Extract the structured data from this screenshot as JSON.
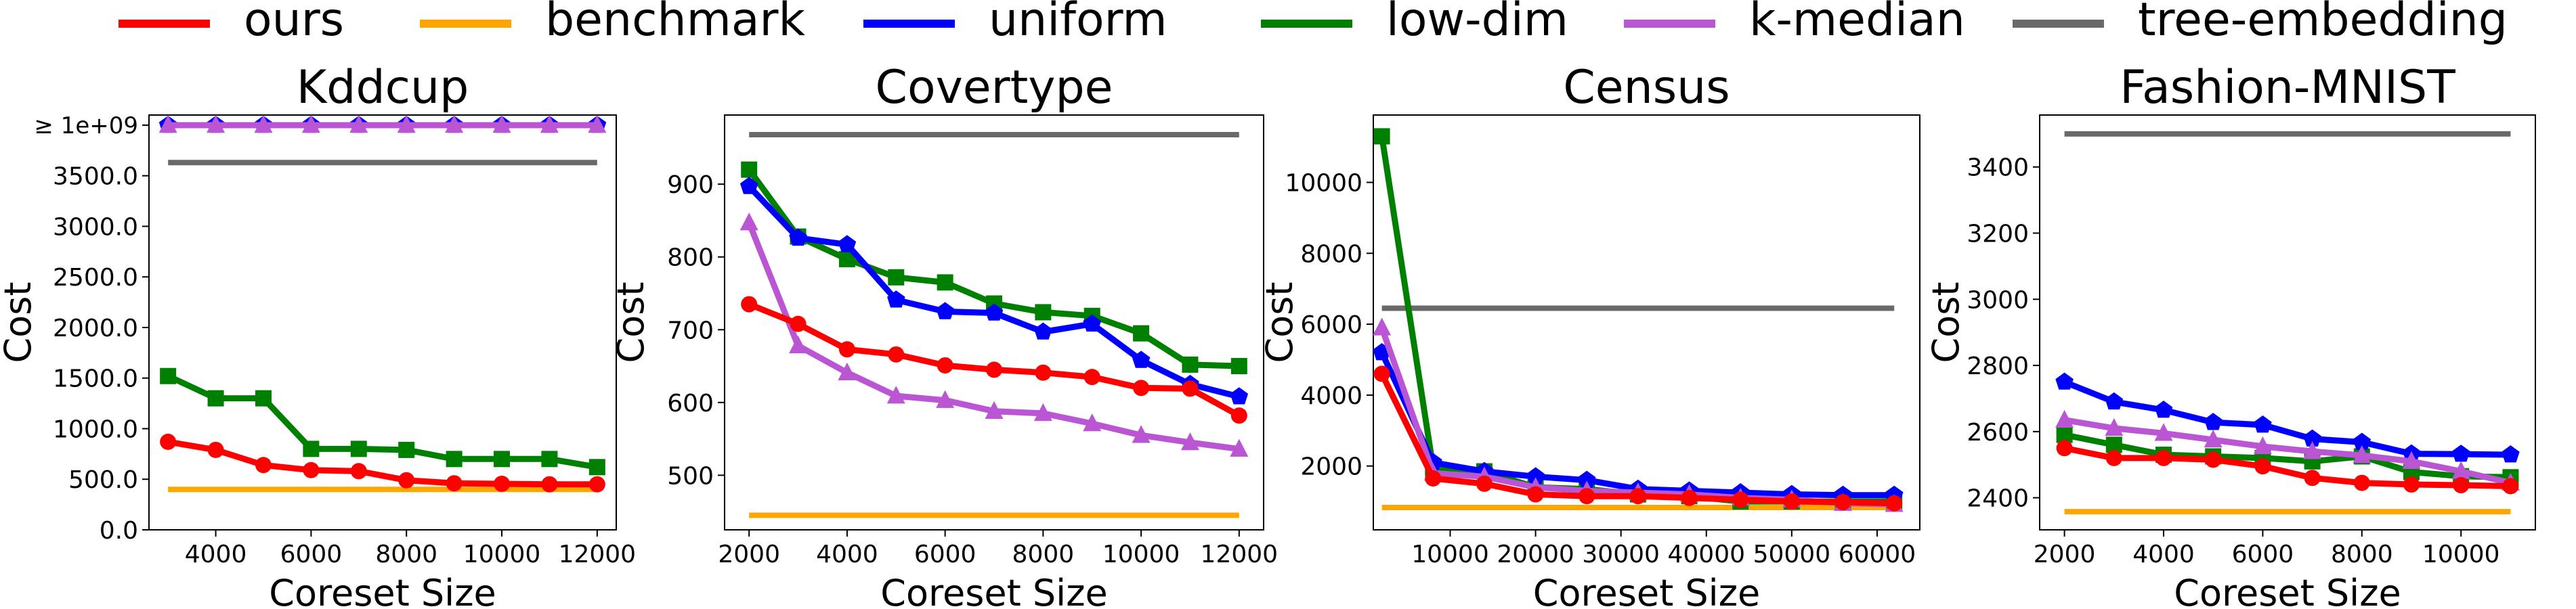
{
  "legend": {
    "entries": [
      {
        "name": "ours",
        "color": "#ff0000"
      },
      {
        "name": "benchmark",
        "color": "#ffa500"
      },
      {
        "name": "uniform",
        "color": "#0000ff"
      },
      {
        "name": "low-dim",
        "color": "#008000"
      },
      {
        "name": "k-median",
        "color": "#ba55d3"
      },
      {
        "name": "tree-embedding",
        "color": "#696969"
      }
    ]
  },
  "chart_data": [
    {
      "type": "line",
      "title": "Kddcup",
      "xlabel": "Coreset Size",
      "ylabel": "Cost",
      "xlim": [
        2600,
        12400
      ],
      "ylim": [
        0,
        4100
      ],
      "xticks": [
        4000,
        6000,
        8000,
        10000,
        12000
      ],
      "yticks": [
        0,
        500,
        1000,
        1500,
        2000,
        2500,
        3000,
        3500
      ],
      "ytick_labels": [
        "0.0",
        "500.0",
        "1000.0",
        "1500.0",
        "2000.0",
        "2500.0",
        "3000.0",
        "3500.0"
      ],
      "top_tick": {
        "value": 4000,
        "label": "≥ 1e+09"
      },
      "grid": false,
      "x": [
        3000,
        4000,
        5000,
        6000,
        7000,
        8000,
        9000,
        10000,
        11000,
        12000
      ],
      "series": [
        {
          "name": "ours",
          "values": [
            870,
            790,
            640,
            590,
            580,
            490,
            460,
            455,
            450,
            450
          ]
        },
        {
          "name": "benchmark",
          "values": [
            400,
            400,
            400,
            400,
            400,
            400,
            400,
            400,
            400,
            400
          ]
        },
        {
          "name": "uniform",
          "values": [
            4000,
            4000,
            4000,
            4000,
            4000,
            4000,
            4000,
            4000,
            4000,
            4000
          ]
        },
        {
          "name": "low-dim",
          "values": [
            1520,
            1300,
            1300,
            800,
            800,
            790,
            700,
            700,
            700,
            620
          ]
        },
        {
          "name": "k-median",
          "values": [
            4000,
            4000,
            4000,
            4000,
            4000,
            4000,
            4000,
            4000,
            4000,
            4000
          ]
        },
        {
          "name": "tree-embedding",
          "values": [
            3630,
            3630,
            3630,
            3630,
            3630,
            3630,
            3630,
            3630,
            3630,
            3630
          ]
        }
      ]
    },
    {
      "type": "line",
      "title": "Covertype",
      "xlabel": "Coreset Size",
      "ylabel": "Cost",
      "xlim": [
        1500,
        12500
      ],
      "ylim": [
        425,
        995
      ],
      "xticks": [
        2000,
        4000,
        6000,
        8000,
        10000,
        12000
      ],
      "yticks": [
        500,
        600,
        700,
        800,
        900
      ],
      "grid": false,
      "x": [
        2000,
        3000,
        4000,
        5000,
        6000,
        7000,
        8000,
        9000,
        10000,
        11000,
        12000
      ],
      "series": [
        {
          "name": "ours",
          "values": [
            735,
            708,
            673,
            666,
            651,
            645,
            641,
            635,
            620,
            619,
            582
          ]
        },
        {
          "name": "benchmark",
          "values": [
            445,
            445,
            445,
            445,
            445,
            445,
            445,
            445,
            445,
            445,
            445
          ]
        },
        {
          "name": "uniform",
          "values": [
            897,
            826,
            817,
            741,
            725,
            723,
            697,
            708,
            658,
            625,
            608
          ]
        },
        {
          "name": "low-dim",
          "values": [
            920,
            828,
            797,
            772,
            765,
            736,
            724,
            719,
            695,
            652,
            650
          ]
        },
        {
          "name": "k-median",
          "values": [
            847,
            678,
            641,
            609,
            603,
            588,
            585,
            571,
            555,
            545,
            536
          ]
        },
        {
          "name": "tree-embedding",
          "values": [
            968,
            968,
            968,
            968,
            968,
            968,
            968,
            968,
            968,
            968,
            968
          ]
        }
      ]
    },
    {
      "type": "line",
      "title": "Census",
      "xlabel": "Coreset Size",
      "ylabel": "Cost",
      "xlim": [
        1000,
        65000
      ],
      "ylim": [
        200,
        11900
      ],
      "xticks": [
        10000,
        20000,
        30000,
        40000,
        50000,
        60000
      ],
      "yticks": [
        2000,
        4000,
        6000,
        8000,
        10000
      ],
      "grid": false,
      "x": [
        2000,
        8000,
        14000,
        20000,
        26000,
        32000,
        38000,
        44000,
        50000,
        56000,
        62000
      ],
      "series": [
        {
          "name": "ours",
          "values": [
            4600,
            1650,
            1500,
            1200,
            1150,
            1150,
            1100,
            1050,
            1000,
            980,
            950
          ]
        },
        {
          "name": "benchmark",
          "values": [
            830,
            830,
            830,
            830,
            830,
            830,
            830,
            830,
            830,
            830,
            830
          ]
        },
        {
          "name": "uniform",
          "values": [
            5200,
            2100,
            1850,
            1700,
            1600,
            1350,
            1300,
            1250,
            1200,
            1180,
            1180
          ]
        },
        {
          "name": "low-dim",
          "values": [
            11300,
            1950,
            1850,
            1400,
            1350,
            1200,
            1150,
            1000,
            1000,
            1000,
            1000
          ]
        },
        {
          "name": "k-median",
          "values": [
            5900,
            1800,
            1700,
            1400,
            1300,
            1250,
            1200,
            1100,
            1050,
            950,
            920
          ]
        },
        {
          "name": "tree-embedding",
          "values": [
            6450,
            6450,
            6450,
            6450,
            6450,
            6450,
            6450,
            6450,
            6450,
            6450,
            6450
          ]
        }
      ]
    },
    {
      "type": "line",
      "title": "Fashion-MNIST",
      "xlabel": "Coreset Size",
      "ylabel": "Cost",
      "xlim": [
        1500,
        11500
      ],
      "ylim": [
        2303,
        3557
      ],
      "xticks": [
        2000,
        4000,
        6000,
        8000,
        10000
      ],
      "yticks": [
        2400,
        2600,
        2800,
        3000,
        3200,
        3400
      ],
      "grid": false,
      "x": [
        2000,
        3000,
        4000,
        5000,
        6000,
        7000,
        8000,
        9000,
        10000,
        11000
      ],
      "series": [
        {
          "name": "ours",
          "values": [
            2550,
            2520,
            2520,
            2515,
            2495,
            2460,
            2445,
            2440,
            2438,
            2435
          ]
        },
        {
          "name": "benchmark",
          "values": [
            2358,
            2358,
            2358,
            2358,
            2358,
            2358,
            2358,
            2358,
            2358,
            2358
          ]
        },
        {
          "name": "uniform",
          "values": [
            2750,
            2690,
            2665,
            2628,
            2620,
            2578,
            2568,
            2533,
            2532,
            2530
          ]
        },
        {
          "name": "low-dim",
          "values": [
            2590,
            2560,
            2530,
            2525,
            2520,
            2510,
            2525,
            2478,
            2465,
            2462
          ]
        },
        {
          "name": "k-median",
          "values": [
            2635,
            2610,
            2595,
            2575,
            2555,
            2540,
            2528,
            2510,
            2480,
            2445
          ]
        },
        {
          "name": "tree-embedding",
          "values": [
            3500,
            3500,
            3500,
            3500,
            3500,
            3500,
            3500,
            3500,
            3500,
            3500
          ]
        }
      ]
    }
  ]
}
